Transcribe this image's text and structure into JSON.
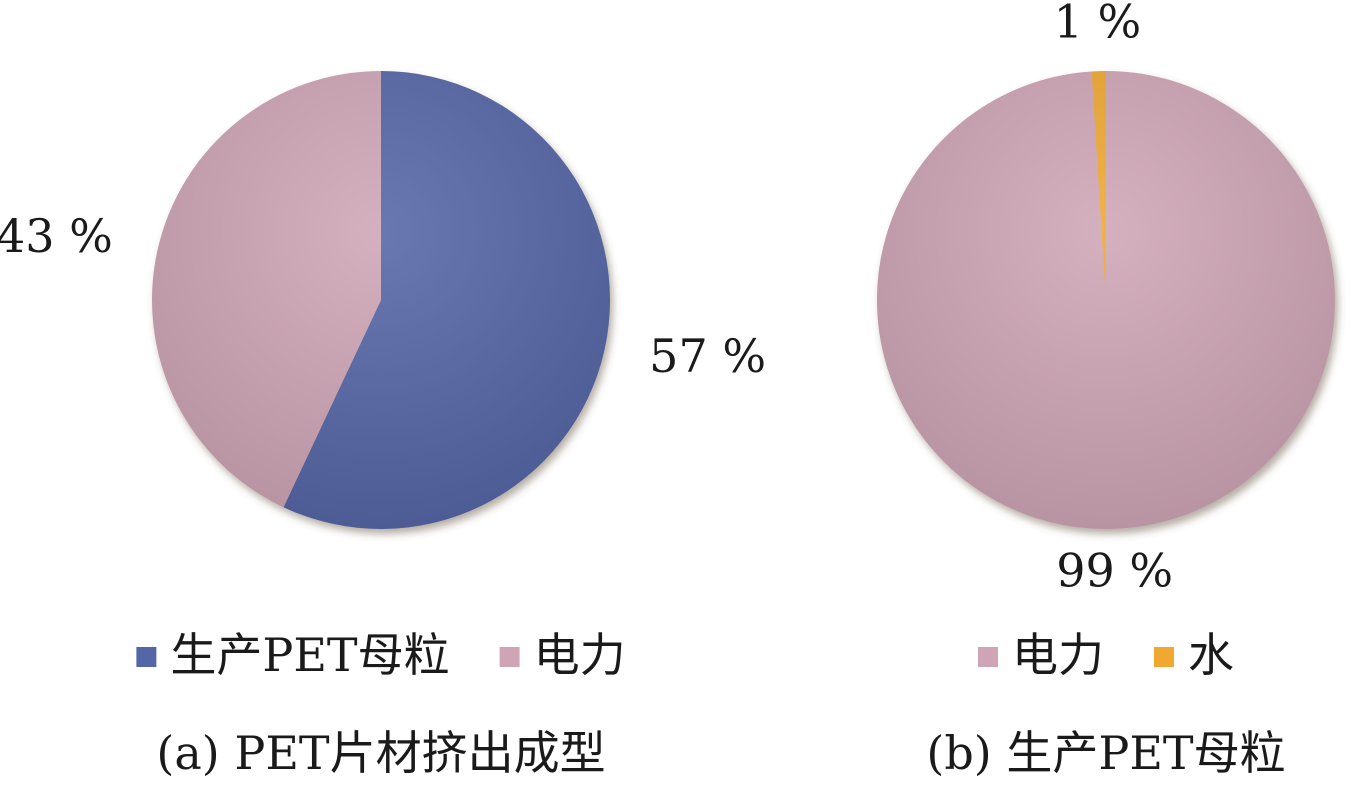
{
  "chart_data": [
    {
      "type": "pie",
      "title": "(a) PET片材挤出成型",
      "categories": [
        "生产PET母粒",
        "电力"
      ],
      "values": [
        57,
        43
      ],
      "value_labels": [
        "57 %",
        "43 %"
      ],
      "colors": [
        "#5566a6",
        "#cfa5b5"
      ]
    },
    {
      "type": "pie",
      "title": "(b) 生产PET母粒",
      "categories": [
        "电力",
        "水"
      ],
      "values": [
        99,
        1
      ],
      "value_labels": [
        "99 %",
        "1 %"
      ],
      "colors": [
        "#cfa5b5",
        "#f0a830"
      ]
    }
  ]
}
